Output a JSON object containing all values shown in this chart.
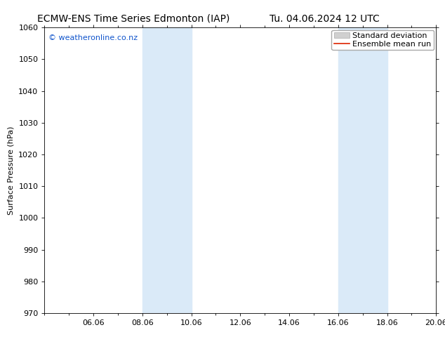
{
  "title_left": "ECMW-ENS Time Series Edmonton (IAP)",
  "title_right": "Tu. 04.06.2024 12 UTC",
  "ylabel": "Surface Pressure (hPa)",
  "watermark": "© weatheronline.co.nz",
  "watermark_color": "#1155cc",
  "ylim": [
    970,
    1060
  ],
  "yticks": [
    970,
    980,
    990,
    1000,
    1010,
    1020,
    1030,
    1040,
    1050,
    1060
  ],
  "x_min": 0,
  "x_max": 16,
  "xtick_labels": [
    "06.06",
    "08.06",
    "10.06",
    "12.06",
    "14.06",
    "16.06",
    "18.06",
    "20.06"
  ],
  "xtick_positions": [
    2,
    4,
    6,
    8,
    10,
    12,
    14,
    16
  ],
  "shaded_bands": [
    {
      "x_start": 4,
      "x_end": 6
    },
    {
      "x_start": 12,
      "x_end": 14
    }
  ],
  "shade_color": "#daeaf8",
  "legend_std_dev_color": "#d0d0d0",
  "legend_std_dev_edge": "#aaaaaa",
  "legend_mean_color": "#dd2200",
  "background_color": "#ffffff",
  "title_fontsize": 10,
  "ylabel_fontsize": 8,
  "tick_fontsize": 8,
  "watermark_fontsize": 8,
  "legend_fontsize": 8
}
